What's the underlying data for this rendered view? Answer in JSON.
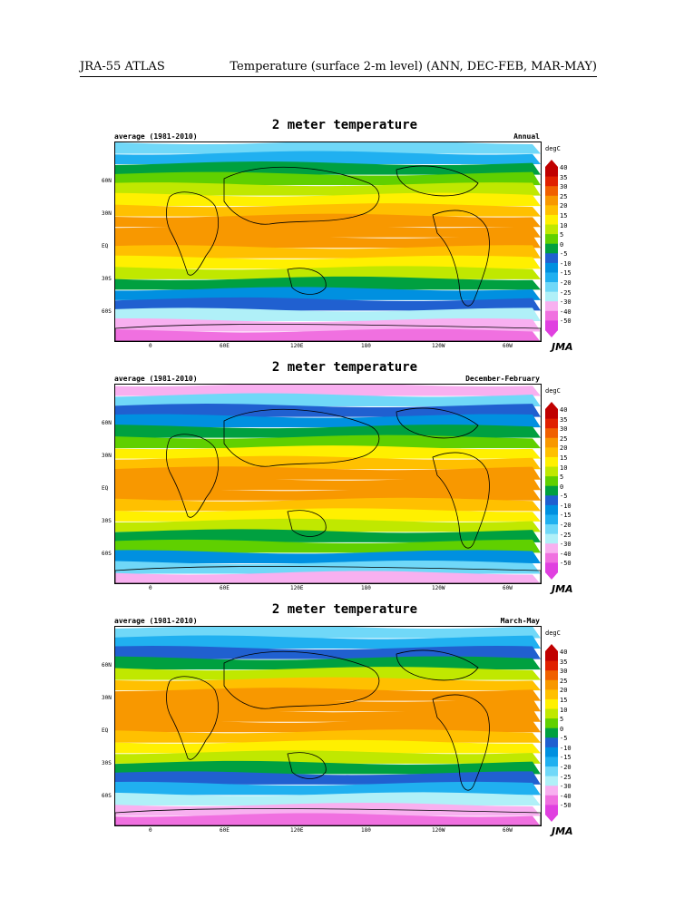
{
  "header": {
    "left": "JRA-55 ATLAS",
    "right": "Temperature (surface 2-m level) (ANN, DEC-FEB, MAR-MAY)"
  },
  "common": {
    "title": "2 meter temperature",
    "period": "average (1981-2010)",
    "unit": "degC",
    "logo": "JMA",
    "lat_labels": [
      "60N",
      "30N",
      "EQ",
      "30S",
      "60S"
    ],
    "lon_labels": [
      "0",
      "60E",
      "120E",
      "180",
      "120W",
      "60W"
    ],
    "cbar_ticks": [
      "40",
      "35",
      "30",
      "25",
      "20",
      "15",
      "10",
      "5",
      "0",
      "-5",
      "-10",
      "-15",
      "-20",
      "-25",
      "-30",
      "-40",
      "-50"
    ],
    "cbar_colors": [
      "#c00000",
      "#e02000",
      "#f06000",
      "#f89800",
      "#ffc000",
      "#fff000",
      "#c0e800",
      "#60d000",
      "#00a040",
      "#2060d0",
      "#0090e0",
      "#20b0f0",
      "#70d8f8",
      "#b0f0f8",
      "#f8b0f0",
      "#f070e0",
      "#e040e0"
    ]
  },
  "panels": [
    {
      "season": "Annual"
    },
    {
      "season": "December-February"
    },
    {
      "season": "March-May"
    }
  ]
}
